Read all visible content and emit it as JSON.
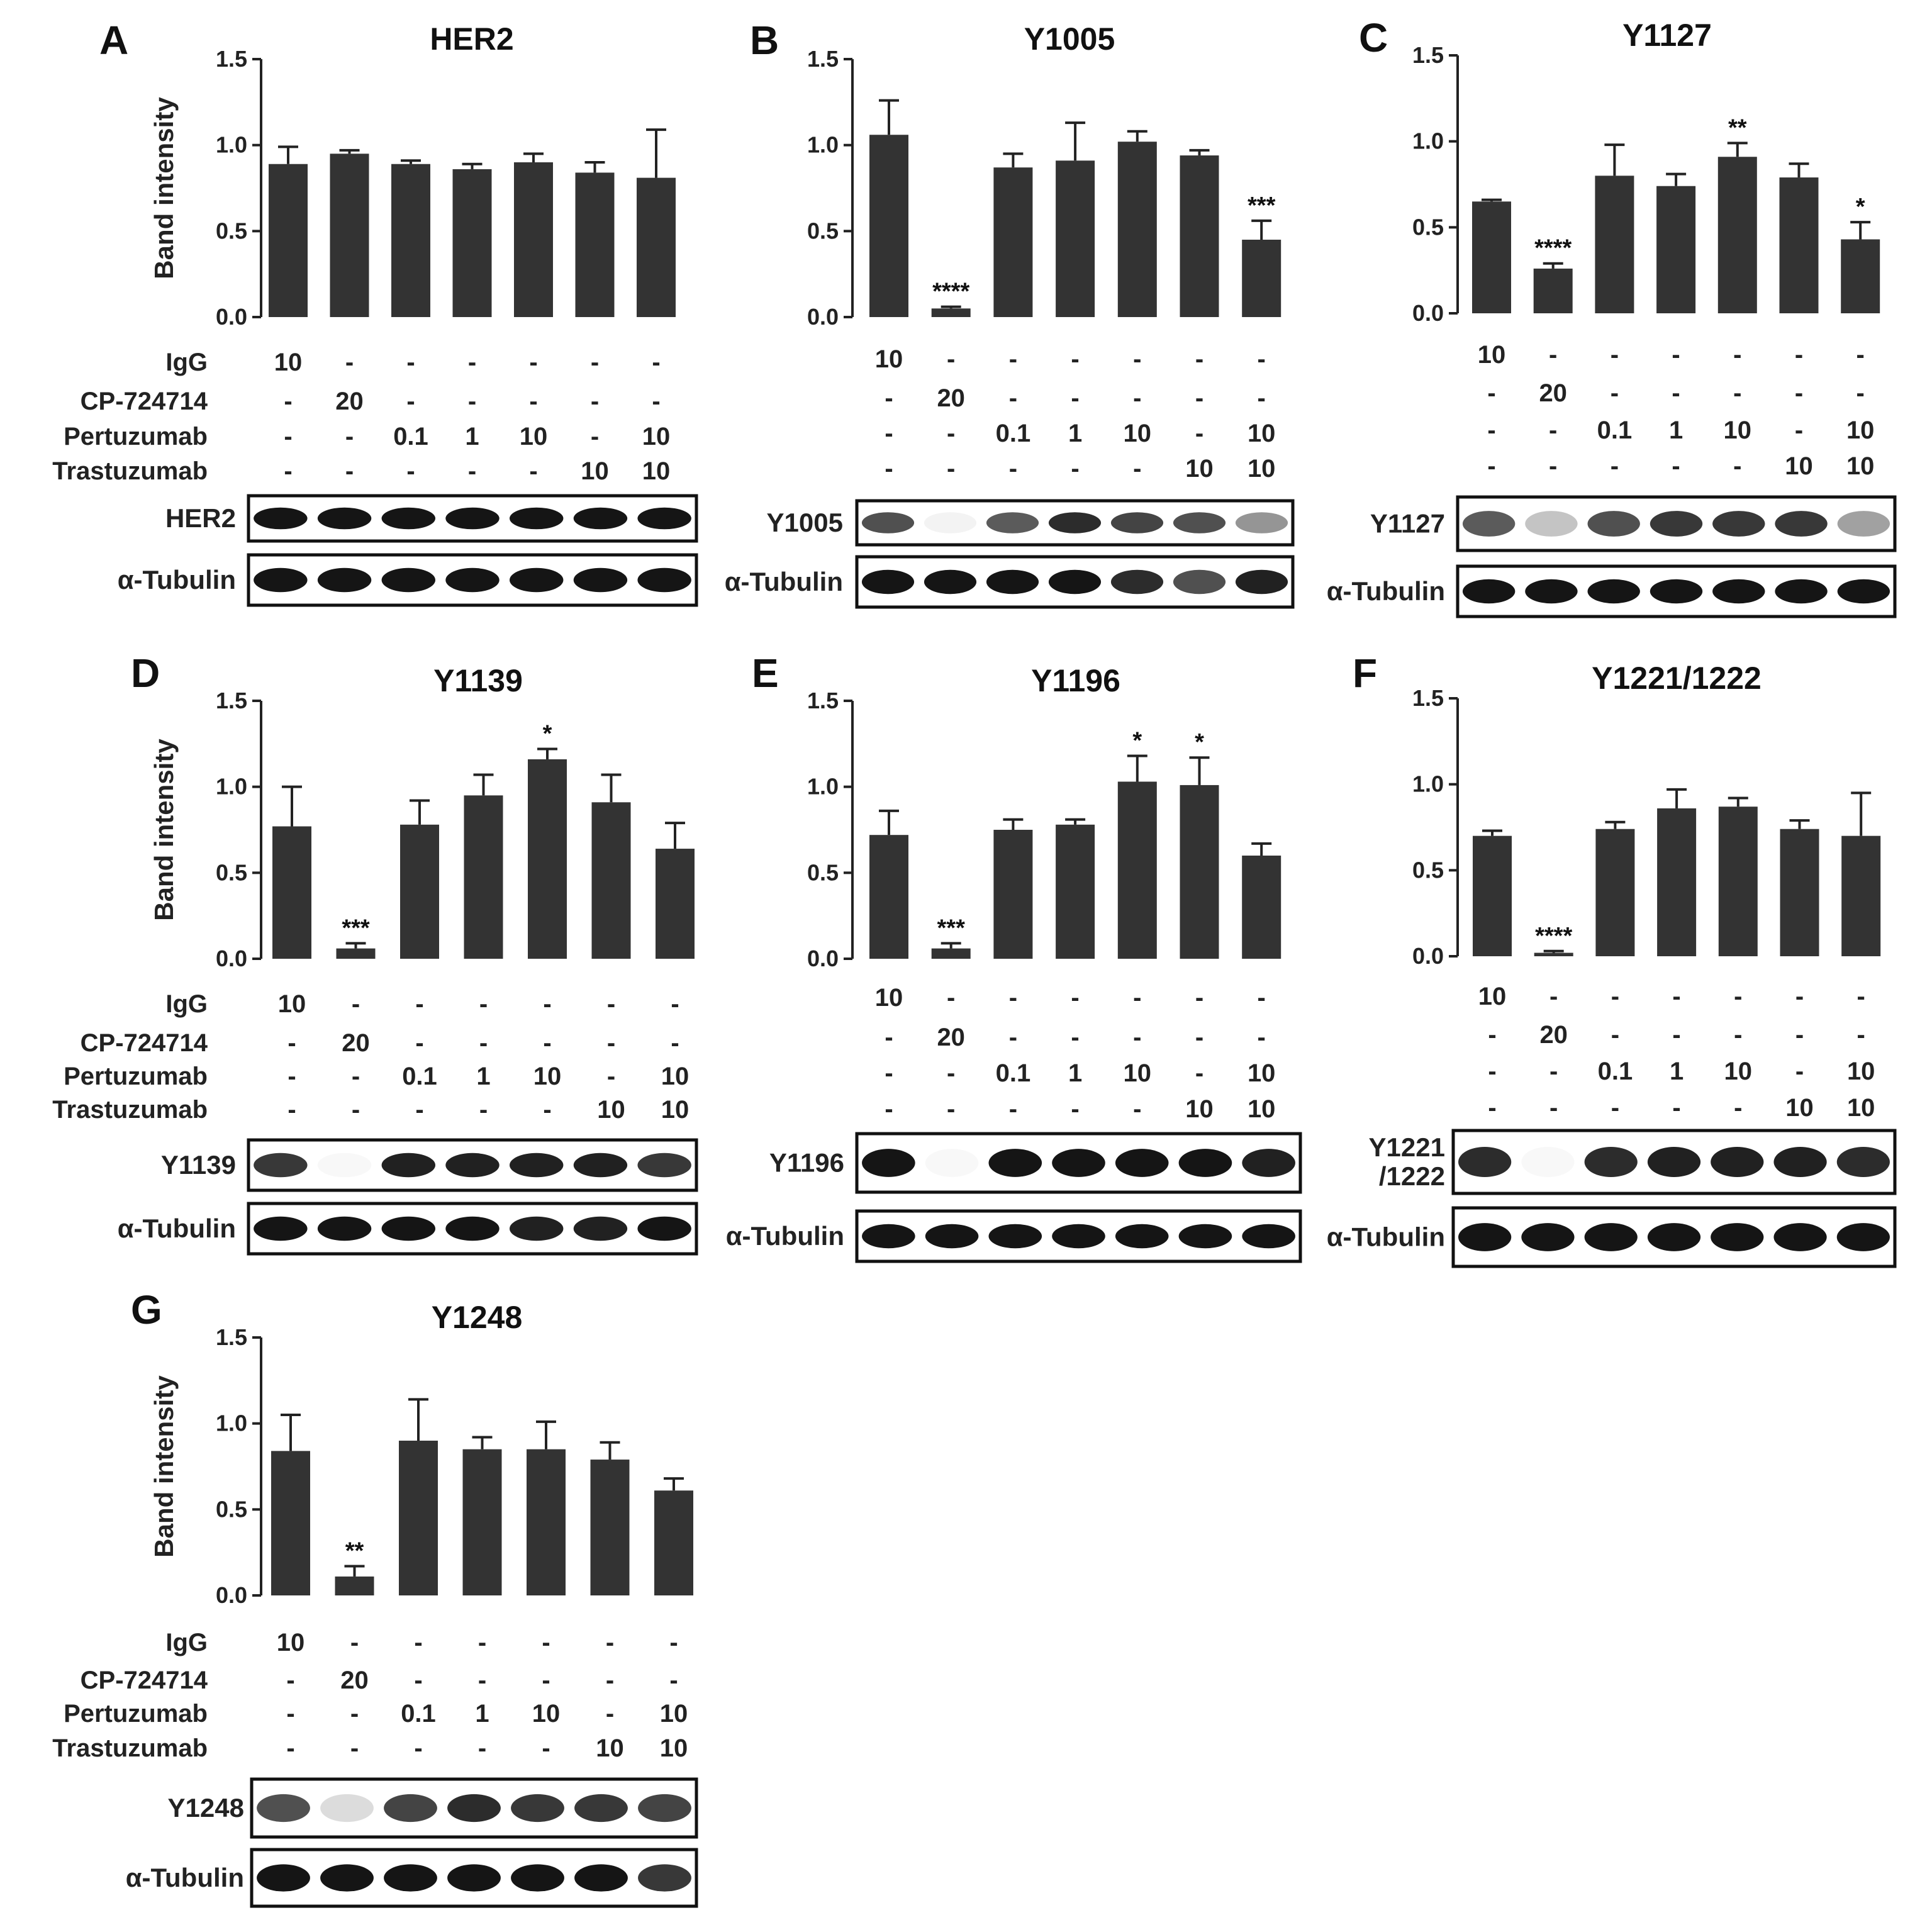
{
  "conditions": {
    "rows": [
      {
        "label": "IgG",
        "values": [
          "10",
          "-",
          "-",
          "-",
          "-",
          "-",
          "-"
        ]
      },
      {
        "label": "CP-724714",
        "values": [
          "-",
          "20",
          "-",
          "-",
          "-",
          "-",
          "-"
        ]
      },
      {
        "label": "Pertuzumab",
        "values": [
          "-",
          "-",
          "0.1",
          "1",
          "10",
          "-",
          "10"
        ]
      },
      {
        "label": "Trastuzumab",
        "values": [
          "-",
          "-",
          "-",
          "-",
          "-",
          "10",
          "10"
        ]
      }
    ]
  },
  "colors": {
    "bar": "#333333",
    "blot_band": "#151515"
  },
  "chart_data": [
    {
      "panel": "A",
      "type": "bar",
      "title": "HER2",
      "ylabel": "Band intensity",
      "ylim": [
        0,
        1.5
      ],
      "yticks": [
        "0.0",
        "0.5",
        "1.0",
        "1.5"
      ],
      "values": [
        0.89,
        0.95,
        0.89,
        0.86,
        0.9,
        0.84,
        0.81
      ],
      "errors": [
        0.1,
        0.02,
        0.02,
        0.03,
        0.05,
        0.06,
        0.28
      ],
      "significance": [
        "",
        "",
        "",
        "",
        "",
        "",
        ""
      ],
      "blot_labels": [
        "HER2",
        "α-Tubulin"
      ],
      "band_intensity": [
        [
          1,
          1,
          1,
          1,
          1,
          1,
          1
        ],
        [
          1,
          1,
          1,
          1,
          1,
          1,
          1
        ]
      ]
    },
    {
      "panel": "B",
      "type": "bar",
      "title": "Y1005",
      "ylabel": "",
      "ylim": [
        0,
        1.5
      ],
      "yticks": [
        "0.0",
        "0.5",
        "1.0",
        "1.5"
      ],
      "values": [
        1.06,
        0.05,
        0.87,
        0.91,
        1.02,
        0.94,
        0.45
      ],
      "errors": [
        0.2,
        0.01,
        0.08,
        0.22,
        0.06,
        0.03,
        0.11
      ],
      "significance": [
        "",
        "****",
        "",
        "",
        "",
        "",
        "***"
      ],
      "blot_labels": [
        "Y1005",
        "α-Tubulin"
      ],
      "band_intensity": [
        [
          0.75,
          0.05,
          0.7,
          0.9,
          0.8,
          0.75,
          0.45
        ],
        [
          1,
          1,
          1,
          1,
          0.9,
          0.75,
          0.95
        ]
      ]
    },
    {
      "panel": "C",
      "type": "bar",
      "title": "Y1127",
      "ylabel": "",
      "ylim": [
        0,
        1.5
      ],
      "yticks": [
        "0.0",
        "0.5",
        "1.0",
        "1.5"
      ],
      "values": [
        0.65,
        0.26,
        0.8,
        0.74,
        0.91,
        0.79,
        0.43
      ],
      "errors": [
        0.01,
        0.03,
        0.18,
        0.07,
        0.08,
        0.08,
        0.1
      ],
      "significance": [
        "",
        "****",
        "",
        "",
        "**",
        "",
        "*"
      ],
      "blot_labels": [
        "Y1127",
        "α-Tubulin"
      ],
      "band_intensity": [
        [
          0.7,
          0.25,
          0.75,
          0.85,
          0.85,
          0.85,
          0.4
        ],
        [
          1,
          1,
          1,
          1,
          1,
          1,
          1
        ]
      ]
    },
    {
      "panel": "D",
      "type": "bar",
      "title": "Y1139",
      "ylabel": "Band intensity",
      "ylim": [
        0,
        1.5
      ],
      "yticks": [
        "0.0",
        "0.5",
        "1.0",
        "1.5"
      ],
      "values": [
        0.77,
        0.06,
        0.78,
        0.95,
        1.16,
        0.91,
        0.64
      ],
      "errors": [
        0.23,
        0.03,
        0.14,
        0.12,
        0.06,
        0.16,
        0.15
      ],
      "significance": [
        "",
        "***",
        "",
        "",
        "*",
        "",
        ""
      ],
      "blot_labels": [
        "Y1139",
        "α-Tubulin"
      ],
      "band_intensity": [
        [
          0.85,
          0.03,
          0.95,
          0.95,
          0.95,
          0.95,
          0.85
        ],
        [
          1,
          1,
          1,
          1,
          0.95,
          0.95,
          1
        ]
      ]
    },
    {
      "panel": "E",
      "type": "bar",
      "title": "Y1196",
      "ylabel": "",
      "ylim": [
        0,
        1.5
      ],
      "yticks": [
        "0.0",
        "0.5",
        "1.0",
        "1.5"
      ],
      "values": [
        0.72,
        0.06,
        0.75,
        0.78,
        1.03,
        1.01,
        0.6
      ],
      "errors": [
        0.14,
        0.03,
        0.06,
        0.03,
        0.15,
        0.16,
        0.07
      ],
      "significance": [
        "",
        "***",
        "",
        "",
        "*",
        "*",
        ""
      ],
      "blot_labels": [
        "Y1196",
        "α-Tubulin"
      ],
      "band_intensity": [
        [
          1,
          0.03,
          1,
          1,
          1,
          1,
          0.95
        ],
        [
          1,
          1,
          1,
          1,
          1,
          1,
          1
        ]
      ]
    },
    {
      "panel": "F",
      "type": "bar",
      "title": "Y1221/1222",
      "ylabel": "",
      "ylim": [
        0,
        1.5
      ],
      "yticks": [
        "0.0",
        "0.5",
        "1.0",
        "1.5"
      ],
      "values": [
        0.7,
        0.02,
        0.74,
        0.86,
        0.87,
        0.74,
        0.7
      ],
      "errors": [
        0.03,
        0.01,
        0.04,
        0.11,
        0.05,
        0.05,
        0.25
      ],
      "significance": [
        "",
        "****",
        "",
        "",
        "",
        "",
        ""
      ],
      "blot_labels": [
        "Y1221\n/1222",
        "α-Tubulin"
      ],
      "band_intensity": [
        [
          0.9,
          0.03,
          0.9,
          0.95,
          0.95,
          0.95,
          0.9
        ],
        [
          1,
          1,
          1,
          1,
          1,
          1,
          1
        ]
      ]
    },
    {
      "panel": "G",
      "type": "bar",
      "title": "Y1248",
      "ylabel": "Band intensity",
      "ylim": [
        0,
        1.5
      ],
      "yticks": [
        "0.0",
        "0.5",
        "1.0",
        "1.5"
      ],
      "values": [
        0.84,
        0.11,
        0.9,
        0.85,
        0.85,
        0.79,
        0.61
      ],
      "errors": [
        0.21,
        0.06,
        0.24,
        0.07,
        0.16,
        0.1,
        0.07
      ],
      "significance": [
        "",
        "**",
        "",
        "",
        "",
        "",
        ""
      ],
      "blot_labels": [
        "Y1248",
        "α-Tubulin"
      ],
      "band_intensity": [
        [
          0.75,
          0.15,
          0.8,
          0.9,
          0.85,
          0.85,
          0.8
        ],
        [
          1,
          1,
          1,
          1,
          1,
          1,
          0.85
        ]
      ]
    }
  ]
}
